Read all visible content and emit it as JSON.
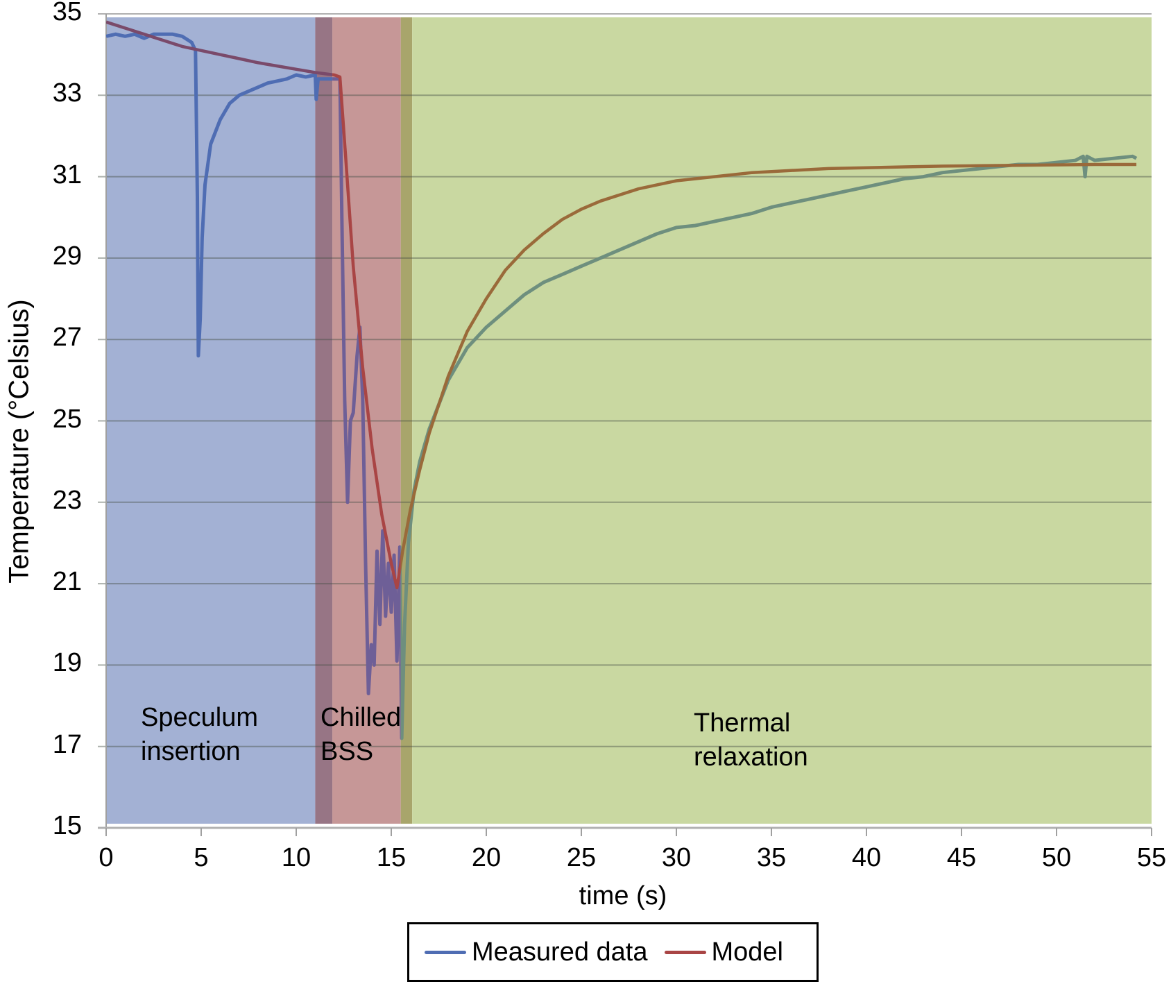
{
  "chart_data": {
    "type": "line",
    "title": "",
    "xlabel": "time (s)",
    "ylabel": "Temperature (°Celsius)",
    "xlim": [
      0,
      55
    ],
    "ylim": [
      15,
      35
    ],
    "xticks": [
      0,
      5,
      10,
      15,
      20,
      25,
      30,
      35,
      40,
      45,
      50,
      55
    ],
    "yticks": [
      15,
      17,
      19,
      21,
      23,
      25,
      27,
      29,
      31,
      33,
      35
    ],
    "grid": "horizontal",
    "legend_position": "bottom",
    "legend": [
      "Measured data",
      "Model"
    ],
    "regions": [
      {
        "label": "Speculum insertion",
        "x_start": 0,
        "x_end": 11.9,
        "color": "#a3b1d4"
      },
      {
        "label": "Chilled BSS",
        "x_start": 11.0,
        "x_end": 16.1,
        "color": "#c69797"
      },
      {
        "label": "Thermal relaxation",
        "x_start": 15.5,
        "x_end": 55,
        "color": "#c9d8a1"
      }
    ],
    "series": [
      {
        "name": "Measured data",
        "color": "#4f6db3",
        "points": [
          [
            0,
            34.45
          ],
          [
            0.5,
            34.5
          ],
          [
            1,
            34.45
          ],
          [
            1.5,
            34.5
          ],
          [
            2,
            34.4
          ],
          [
            2.5,
            34.5
          ],
          [
            3,
            34.5
          ],
          [
            3.5,
            34.5
          ],
          [
            4,
            34.45
          ],
          [
            4.5,
            34.3
          ],
          [
            4.7,
            34.1
          ],
          [
            4.8,
            30.5
          ],
          [
            4.85,
            26.6
          ],
          [
            4.95,
            27.5
          ],
          [
            5.05,
            29.5
          ],
          [
            5.2,
            30.8
          ],
          [
            5.5,
            31.8
          ],
          [
            6,
            32.4
          ],
          [
            6.5,
            32.8
          ],
          [
            7,
            33.0
          ],
          [
            7.5,
            33.1
          ],
          [
            8,
            33.2
          ],
          [
            8.5,
            33.3
          ],
          [
            9,
            33.35
          ],
          [
            9.5,
            33.4
          ],
          [
            10,
            33.5
          ],
          [
            10.5,
            33.45
          ],
          [
            11,
            33.5
          ],
          [
            11.05,
            32.9
          ],
          [
            11.15,
            33.4
          ],
          [
            11.5,
            33.4
          ],
          [
            12,
            33.4
          ],
          [
            12.3,
            33.4
          ],
          [
            12.4,
            30.0
          ],
          [
            12.5,
            27.0
          ],
          [
            12.55,
            25.5
          ],
          [
            12.7,
            23.0
          ],
          [
            12.85,
            25.0
          ],
          [
            13.0,
            25.2
          ],
          [
            13.2,
            26.6
          ],
          [
            13.35,
            27.3
          ],
          [
            13.5,
            25.5
          ],
          [
            13.65,
            21.5
          ],
          [
            13.8,
            18.3
          ],
          [
            13.95,
            19.5
          ],
          [
            14.1,
            19.0
          ],
          [
            14.25,
            21.8
          ],
          [
            14.4,
            20.0
          ],
          [
            14.55,
            22.3
          ],
          [
            14.7,
            20.2
          ],
          [
            14.85,
            21.5
          ],
          [
            15.0,
            20.3
          ],
          [
            15.15,
            21.7
          ],
          [
            15.3,
            19.1
          ],
          [
            15.45,
            21.9
          ],
          [
            15.55,
            17.2
          ],
          [
            15.7,
            20.0
          ],
          [
            15.9,
            22.0
          ],
          [
            16.2,
            23.3
          ],
          [
            16.5,
            24.0
          ],
          [
            17,
            24.8
          ],
          [
            17.5,
            25.4
          ],
          [
            18,
            26.0
          ],
          [
            18.5,
            26.4
          ],
          [
            19,
            26.8
          ],
          [
            20,
            27.3
          ],
          [
            21,
            27.7
          ],
          [
            22,
            28.1
          ],
          [
            23,
            28.4
          ],
          [
            24,
            28.6
          ],
          [
            25,
            28.8
          ],
          [
            26,
            29.0
          ],
          [
            27,
            29.2
          ],
          [
            28,
            29.4
          ],
          [
            29,
            29.6
          ],
          [
            30,
            29.75
          ],
          [
            31,
            29.8
          ],
          [
            32,
            29.9
          ],
          [
            33,
            30.0
          ],
          [
            34,
            30.1
          ],
          [
            35,
            30.25
          ],
          [
            36,
            30.35
          ],
          [
            37,
            30.45
          ],
          [
            38,
            30.55
          ],
          [
            39,
            30.65
          ],
          [
            40,
            30.75
          ],
          [
            41,
            30.85
          ],
          [
            42,
            30.95
          ],
          [
            43,
            31.0
          ],
          [
            44,
            31.1
          ],
          [
            45,
            31.15
          ],
          [
            46,
            31.2
          ],
          [
            47,
            31.25
          ],
          [
            48,
            31.3
          ],
          [
            49,
            31.3
          ],
          [
            50,
            31.35
          ],
          [
            51,
            31.4
          ],
          [
            51.4,
            31.5
          ],
          [
            51.5,
            31.0
          ],
          [
            51.6,
            31.5
          ],
          [
            52,
            31.4
          ],
          [
            53,
            31.45
          ],
          [
            54,
            31.5
          ],
          [
            54.2,
            31.45
          ]
        ]
      },
      {
        "name": "Model",
        "color": "#a94545",
        "points": [
          [
            0,
            34.8
          ],
          [
            1,
            34.65
          ],
          [
            2,
            34.5
          ],
          [
            3,
            34.35
          ],
          [
            4,
            34.2
          ],
          [
            5,
            34.1
          ],
          [
            6,
            34.0
          ],
          [
            7,
            33.9
          ],
          [
            8,
            33.8
          ],
          [
            9,
            33.72
          ],
          [
            10,
            33.64
          ],
          [
            11,
            33.56
          ],
          [
            12,
            33.5
          ],
          [
            12.3,
            33.45
          ],
          [
            12.6,
            31.5
          ],
          [
            13.0,
            28.8
          ],
          [
            13.5,
            26.3
          ],
          [
            14.0,
            24.3
          ],
          [
            14.5,
            22.7
          ],
          [
            15.0,
            21.5
          ],
          [
            15.3,
            20.9
          ],
          [
            15.6,
            21.8
          ],
          [
            16,
            22.8
          ],
          [
            16.5,
            23.8
          ],
          [
            17,
            24.7
          ],
          [
            18,
            26.1
          ],
          [
            19,
            27.2
          ],
          [
            20,
            28.0
          ],
          [
            21,
            28.7
          ],
          [
            22,
            29.2
          ],
          [
            23,
            29.6
          ],
          [
            24,
            29.95
          ],
          [
            25,
            30.2
          ],
          [
            26,
            30.4
          ],
          [
            27,
            30.55
          ],
          [
            28,
            30.7
          ],
          [
            29,
            30.8
          ],
          [
            30,
            30.9
          ],
          [
            32,
            31.0
          ],
          [
            34,
            31.1
          ],
          [
            36,
            31.15
          ],
          [
            38,
            31.2
          ],
          [
            40,
            31.22
          ],
          [
            42,
            31.24
          ],
          [
            44,
            31.26
          ],
          [
            46,
            31.27
          ],
          [
            48,
            31.28
          ],
          [
            50,
            31.29
          ],
          [
            52,
            31.3
          ],
          [
            54.2,
            31.3
          ]
        ]
      }
    ]
  },
  "axes": {
    "xlabel": "time (s)",
    "ylabel": "Temperature (°Celsius)",
    "xtick_labels": [
      "0",
      "5",
      "10",
      "15",
      "20",
      "25",
      "30",
      "35",
      "40",
      "45",
      "50",
      "55"
    ],
    "ytick_labels": [
      "15",
      "17",
      "19",
      "21",
      "23",
      "25",
      "27",
      "29",
      "31",
      "33",
      "35"
    ]
  },
  "region_labels": {
    "speculum": "Speculum\ninsertion",
    "chilled": "Chilled\nBSS",
    "thermal": "Thermal\nrelaxation"
  },
  "legend": {
    "measured": {
      "label": "Measured data",
      "color": "#4f6db3"
    },
    "model": {
      "label": "Model",
      "color": "#a94545"
    }
  },
  "colors": {
    "speculum_bg": "#a3b1d4",
    "overlap_1": "#977585",
    "chilled_bg": "#c69797",
    "overlap_2": "#a8a56b",
    "thermal_bg": "#c9d8a1",
    "measured_in_green": "#6e8f7e",
    "model_in_green": "#9a6a3a",
    "measured_in_red": "#6e5f97"
  }
}
